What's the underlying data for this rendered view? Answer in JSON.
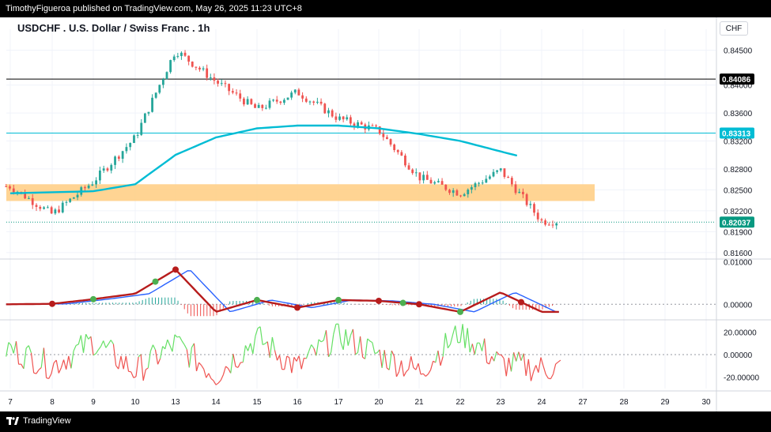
{
  "header": {
    "publish_text": "TimothyFigueroa published on TradingView.com, May 26, 2025 11:23 UTC+8"
  },
  "chart_title": "USDCHF . U.S. Dollar / Swiss Franc . 1h",
  "currency_button": "CHF",
  "footer": {
    "brand": "TradingView",
    "logo_icon": "tradingview-logo-icon"
  },
  "colors": {
    "up": "#26a69a",
    "down": "#ef5350",
    "ema": "#00bcd4",
    "zone": "#ffcc80",
    "macd_up": "#4caf50",
    "macd_down": "#b71c1c",
    "signal": "#2962ff",
    "osc_up": "#66e066",
    "osc_down": "#ef5350",
    "grid": "#f0f3fa"
  },
  "chart_data": [
    {
      "type": "candlestick",
      "title": "USDCHF . U.S. Dollar / Swiss Franc . 1h",
      "x_tick_labels": [
        "7",
        "8",
        "9",
        "10",
        "13",
        "14",
        "15",
        "16",
        "17",
        "20",
        "21",
        "22",
        "23",
        "24",
        "27",
        "28",
        "29",
        "30"
      ],
      "y_tick_labels": [
        "0.84500",
        "0.84000",
        "0.83600",
        "0.83200",
        "0.82800",
        "0.82500",
        "0.82200",
        "0.81900",
        "0.81600"
      ],
      "ylim": [
        0.8152,
        0.848
      ],
      "series": [
        {
          "name": "close",
          "x": [
            "7",
            "8",
            "9",
            "10",
            "13",
            "14",
            "15",
            "16",
            "17",
            "20",
            "21",
            "22",
            "23",
            "24"
          ],
          "values": [
            0.8255,
            0.8215,
            0.8262,
            0.8325,
            0.845,
            0.8405,
            0.8365,
            0.839,
            0.8352,
            0.8335,
            0.8268,
            0.8245,
            0.8278,
            0.8205
          ]
        },
        {
          "name": "EMA",
          "x": [
            "7",
            "9",
            "10",
            "13",
            "14",
            "15",
            "16",
            "17",
            "20",
            "21",
            "22",
            "23",
            "24"
          ],
          "values": [
            0.8245,
            0.8248,
            0.8258,
            0.83,
            0.8325,
            0.8338,
            0.8342,
            0.8342,
            0.8338,
            0.833,
            0.832,
            0.8305,
            0.829
          ]
        }
      ],
      "price_labels": [
        {
          "value": 0.84086,
          "text": "0.84086",
          "color": "#000000"
        },
        {
          "value": 0.83313,
          "text": "0.83313",
          "color": "#00bcd4"
        },
        {
          "value": 0.82037,
          "text": "0.82037",
          "color": "#089981"
        }
      ],
      "zone": {
        "low": 0.8234,
        "high": 0.8258
      }
    },
    {
      "type": "line",
      "name": "MACD",
      "y_tick_labels": [
        "0.01000",
        "0.00000"
      ],
      "ylim": [
        -0.0035,
        0.0105
      ],
      "series": [
        {
          "name": "macd",
          "x": [
            "7",
            "8",
            "9",
            "10",
            "13",
            "14",
            "15",
            "16",
            "17",
            "20",
            "21",
            "22",
            "23",
            "24"
          ],
          "values": [
            0.0,
            0.0001,
            0.0012,
            0.0025,
            0.0082,
            -0.0018,
            0.001,
            -0.0008,
            0.001,
            0.0008,
            0.0,
            -0.0018,
            0.0028,
            -0.0018
          ]
        }
      ]
    },
    {
      "type": "line",
      "name": "Oscillator",
      "y_tick_labels": [
        "20.00000",
        "0.00000",
        "-20.00000"
      ],
      "ylim": [
        -30,
        30
      ],
      "series": [
        {
          "name": "osc",
          "x": [
            "7",
            "8",
            "9",
            "10",
            "13",
            "14",
            "15",
            "16",
            "17",
            "20",
            "21",
            "22",
            "23",
            "24"
          ],
          "values": [
            5,
            -10,
            12,
            -15,
            10,
            -18,
            15,
            -12,
            18,
            0,
            -15,
            20,
            -8,
            -12
          ]
        }
      ]
    }
  ]
}
